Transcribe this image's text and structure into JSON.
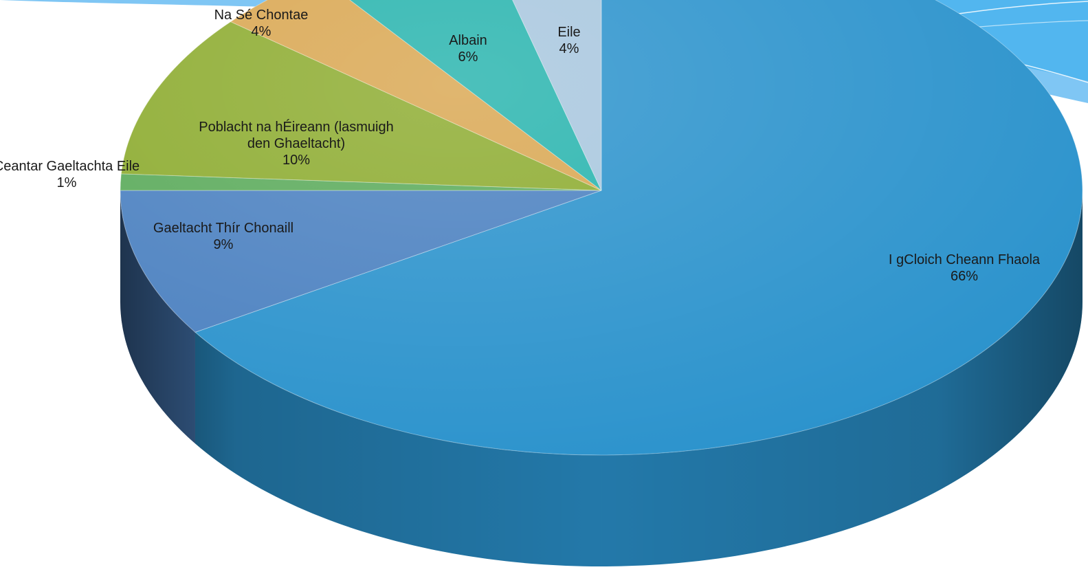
{
  "chart_data": {
    "type": "pie",
    "style": "3d",
    "start_angle": "12 o'clock",
    "direction": "clockwise",
    "title": "",
    "slices": [
      {
        "label": "I gCloich Cheann Fhaola",
        "value": 66,
        "value_label": "66%",
        "color": "#2a92cc"
      },
      {
        "label": "Gaeltacht Thír Chonaill",
        "value": 9,
        "value_label": "9%",
        "color": "#4a80c0"
      },
      {
        "label": "Ceantar Gaeltachta Eile",
        "value": 1,
        "value_label": "1%",
        "color": "#5aaa5a"
      },
      {
        "label": "Poblacht na hÉireann (lasmuigh den Ghaeltacht)",
        "value": 10,
        "value_label": "10%",
        "color": "#8cab2e"
      },
      {
        "label": "Na Sé Chontae",
        "value": 4,
        "value_label": "4%",
        "color": "#d9a650"
      },
      {
        "label": "Albain",
        "value": 6,
        "value_label": "6%",
        "color": "#25b3ad"
      },
      {
        "label": "Eile",
        "value": 4,
        "value_label": "4%",
        "color": "#a7c6de"
      }
    ]
  }
}
